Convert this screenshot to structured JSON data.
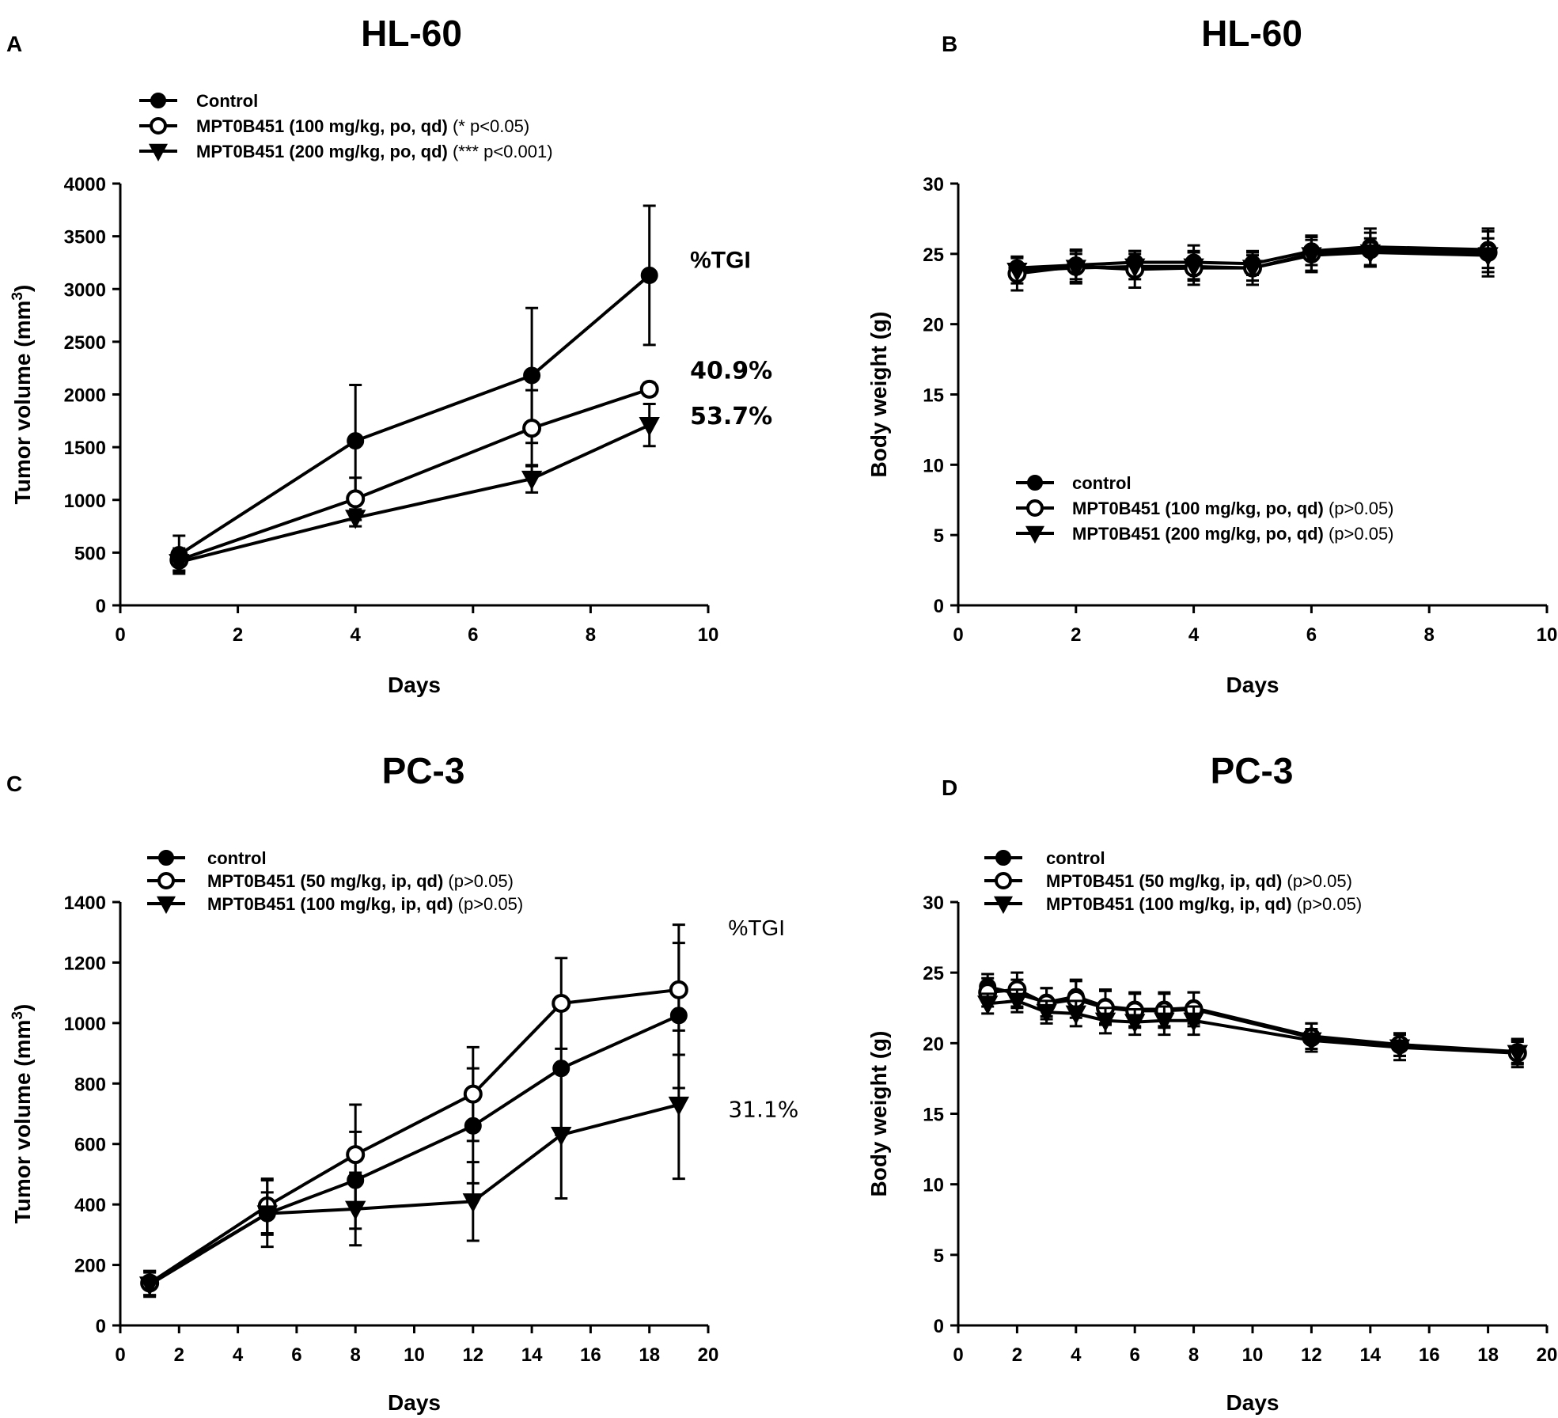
{
  "chart_data": [
    {
      "panel": "A",
      "type": "line",
      "title": "HL-60",
      "xlabel": "Days",
      "ylabel": "Tumor volume (mm3)",
      "xlim": [
        0,
        10
      ],
      "ylim": [
        0,
        4000
      ],
      "xticks": [
        0,
        2,
        4,
        6,
        8,
        10
      ],
      "yticks": [
        0,
        500,
        1000,
        1500,
        2000,
        2500,
        3000,
        3500,
        4000
      ],
      "legend_position": "top-left",
      "series": [
        {
          "name": "Control",
          "note": "",
          "marker": "filled-circle",
          "x": [
            1,
            4,
            7,
            9
          ],
          "values": [
            480,
            1560,
            2180,
            3130
          ],
          "errors": [
            180,
            530,
            640,
            660
          ]
        },
        {
          "name": "MPT0B451 (100 mg/kg, po, qd)",
          "note": "(* p<0.05)",
          "marker": "open-circle",
          "x": [
            1,
            4,
            7,
            9
          ],
          "values": [
            430,
            1010,
            1680,
            2050
          ],
          "errors": [
            110,
            200,
            360,
            60
          ]
        },
        {
          "name": "MPT0B451 (200 mg/kg, po, qd)",
          "note": "(*** p<0.001)",
          "marker": "triangle-down",
          "x": [
            1,
            4,
            7,
            9
          ],
          "values": [
            410,
            830,
            1200,
            1710
          ],
          "errors": [
            80,
            80,
            130,
            200
          ]
        }
      ],
      "annotations": [
        {
          "text": "%TGI",
          "x": 9.8,
          "y": 3200,
          "style": "head"
        },
        {
          "text": "40.9%",
          "x": 9.8,
          "y": 2150,
          "style": "bold"
        },
        {
          "text": "53.7%",
          "x": 9.8,
          "y": 1720,
          "style": "bold"
        }
      ]
    },
    {
      "panel": "B",
      "type": "line",
      "title": "HL-60",
      "xlabel": "Days",
      "ylabel": "Body weight (g)",
      "xlim": [
        0,
        10
      ],
      "ylim": [
        0,
        30
      ],
      "xticks": [
        0,
        2,
        4,
        6,
        8,
        10
      ],
      "yticks": [
        0,
        5,
        10,
        15,
        20,
        25,
        30
      ],
      "legend_position": "middle-left",
      "series": [
        {
          "name": "control",
          "note": "",
          "marker": "filled-circle",
          "x": [
            1,
            2,
            3,
            4,
            5,
            6,
            7,
            9
          ],
          "values": [
            24.0,
            24.2,
            24.4,
            24.4,
            24.3,
            25.2,
            25.5,
            25.3
          ],
          "errors": [
            0.8,
            1.0,
            0.8,
            1.2,
            0.8,
            1.0,
            1.3,
            1.3
          ]
        },
        {
          "name": "MPT0B451 (100 mg/kg, po, qd)",
          "note": "(p>0.05)",
          "marker": "open-circle",
          "x": [
            1,
            2,
            3,
            4,
            5,
            6,
            7,
            9
          ],
          "values": [
            23.6,
            24.1,
            23.9,
            24.0,
            24.0,
            25.0,
            25.3,
            25.1
          ],
          "errors": [
            1.2,
            1.2,
            1.3,
            1.2,
            1.2,
            1.3,
            1.2,
            1.7
          ]
        },
        {
          "name": "MPT0B451 (200 mg/kg, po, qd)",
          "note": "(p>0.05)",
          "marker": "triangle-down",
          "x": [
            1,
            2,
            3,
            4,
            5,
            6,
            7,
            9
          ],
          "values": [
            23.8,
            24.0,
            24.1,
            24.1,
            24.0,
            24.9,
            25.1,
            24.9
          ],
          "errors": [
            0.9,
            1.0,
            0.9,
            1.0,
            0.9,
            1.1,
            1.0,
            1.2
          ]
        }
      ],
      "annotations": []
    },
    {
      "panel": "C",
      "type": "line",
      "title": "PC-3",
      "xlabel": "Days",
      "ylabel": "Tumor volume (mm3)",
      "xlim": [
        0,
        20
      ],
      "ylim": [
        0,
        1400
      ],
      "xticks": [
        0,
        2,
        4,
        6,
        8,
        10,
        12,
        14,
        16,
        18,
        20
      ],
      "yticks": [
        0,
        200,
        400,
        600,
        800,
        1000,
        1200,
        1400
      ],
      "legend_position": "top-left",
      "series": [
        {
          "name": "control",
          "note": "",
          "marker": "filled-circle",
          "x": [
            1,
            5,
            8,
            12,
            15,
            19
          ],
          "values": [
            140,
            370,
            480,
            660,
            850,
            1025
          ],
          "errors": [
            40,
            110,
            160,
            190,
            220,
            240
          ]
        },
        {
          "name": "MPT0B451 (50 mg/kg, ip, qd)",
          "note": "(p>0.05)",
          "marker": "open-circle",
          "x": [
            1,
            5,
            8,
            12,
            15,
            19
          ],
          "values": [
            140,
            395,
            565,
            765,
            1065,
            1110
          ],
          "errors": [
            40,
            90,
            165,
            155,
            150,
            215
          ]
        },
        {
          "name": "MPT0B451 (100 mg/kg, ip, qd)",
          "note": "(p>0.05)",
          "marker": "triangle-down",
          "x": [
            1,
            5,
            8,
            12,
            15,
            19
          ],
          "values": [
            135,
            370,
            385,
            410,
            630,
            730
          ],
          "errors": [
            40,
            70,
            120,
            130,
            210,
            245
          ]
        }
      ],
      "annotations": [
        {
          "text": "%TGI",
          "x": 20.9,
          "y": 1290,
          "style": "head-plain"
        },
        {
          "text": "31.1%",
          "x": 20.9,
          "y": 690,
          "style": "plain"
        }
      ]
    },
    {
      "panel": "D",
      "type": "line",
      "title": "PC-3",
      "xlabel": "Days",
      "ylabel": "Body weight (g)",
      "xlim": [
        0,
        20
      ],
      "ylim": [
        0,
        30
      ],
      "xticks": [
        0,
        2,
        4,
        6,
        8,
        10,
        12,
        14,
        16,
        18,
        20
      ],
      "yticks": [
        0,
        5,
        10,
        15,
        20,
        25,
        30
      ],
      "legend_position": "top-left",
      "series": [
        {
          "name": "control",
          "note": "",
          "marker": "filled-circle",
          "x": [
            1,
            2,
            3,
            4,
            5,
            6,
            7,
            8,
            12,
            15,
            19
          ],
          "values": [
            24.0,
            23.5,
            22.9,
            23.3,
            22.6,
            22.4,
            22.4,
            22.5,
            20.5,
            19.9,
            19.4
          ],
          "errors": [
            0.9,
            1.0,
            1.0,
            1.2,
            1.2,
            1.2,
            1.2,
            1.1,
            0.9,
            0.8,
            0.8
          ]
        },
        {
          "name": "MPT0B451 (50 mg/kg, ip, qd)",
          "note": "(p>0.05)",
          "marker": "open-circle",
          "x": [
            1,
            2,
            3,
            4,
            5,
            6,
            7,
            8,
            12,
            15,
            19
          ],
          "values": [
            23.6,
            23.8,
            22.8,
            23.1,
            22.5,
            22.3,
            22.3,
            22.4,
            20.4,
            19.9,
            19.3
          ],
          "errors": [
            1.0,
            1.2,
            1.1,
            1.3,
            1.2,
            1.2,
            1.2,
            1.2,
            1.0,
            0.8,
            0.8
          ]
        },
        {
          "name": "MPT0B451 (100 mg/kg, ip, qd)",
          "note": "(p>0.05)",
          "marker": "triangle-down",
          "x": [
            1,
            2,
            3,
            4,
            5,
            6,
            7,
            8,
            12,
            15,
            19
          ],
          "values": [
            22.8,
            23.0,
            22.2,
            22.1,
            21.6,
            21.5,
            21.6,
            21.6,
            20.2,
            19.7,
            19.3
          ],
          "errors": [
            0.7,
            0.8,
            0.8,
            0.9,
            0.9,
            0.9,
            1.0,
            1.0,
            0.8,
            0.9,
            1.0
          ]
        }
      ],
      "annotations": []
    }
  ]
}
